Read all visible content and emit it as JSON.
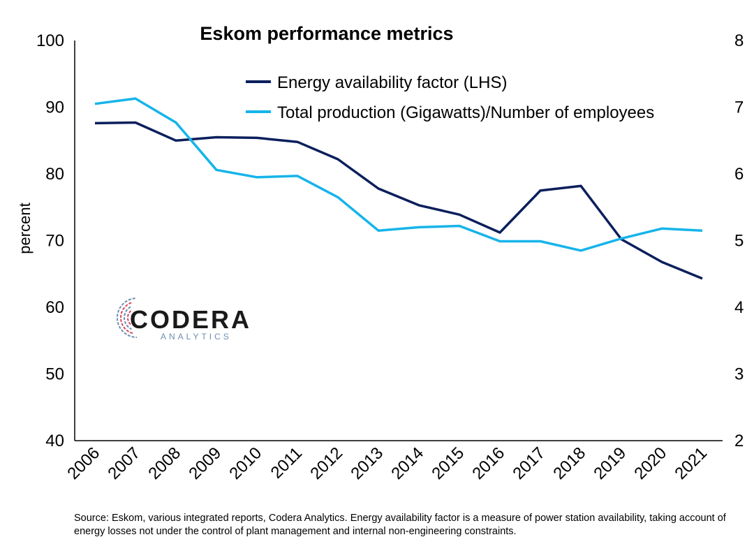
{
  "chart_data": {
    "type": "line",
    "title": "Eskom performance metrics",
    "ylabel": "percent",
    "y2label": "",
    "x": [
      "2006",
      "2007",
      "2008",
      "2009",
      "2010",
      "2011",
      "2012",
      "2013",
      "2014",
      "2015",
      "2016",
      "2017",
      "2018",
      "2019",
      "2020",
      "2021"
    ],
    "ylim": [
      40,
      100
    ],
    "yticks": [
      "40",
      "50",
      "60",
      "70",
      "80",
      "90",
      "100"
    ],
    "y2lim": [
      2,
      8
    ],
    "y2ticks": [
      "2",
      "3",
      "4",
      "5",
      "6",
      "7",
      "8"
    ],
    "grid": false,
    "legend_position": "top-right",
    "series": [
      {
        "name": "Energy availability factor (LHS)",
        "axis": "left",
        "color": "#0b1f5c",
        "values": [
          87.6,
          87.7,
          85.0,
          85.5,
          85.4,
          84.8,
          82.2,
          77.8,
          75.3,
          73.9,
          71.2,
          77.5,
          78.2,
          70.2,
          66.8,
          64.3
        ]
      },
      {
        "name": "Total production (Gigawatts)/Number of employees",
        "axis": "right",
        "color": "#16b4ea",
        "values": [
          7.05,
          7.13,
          6.77,
          6.06,
          5.95,
          5.97,
          5.65,
          5.15,
          5.2,
          5.22,
          4.99,
          4.99,
          4.85,
          5.03,
          5.18,
          5.15
        ]
      }
    ]
  },
  "logo": {
    "main": "CODERA",
    "sub": "ANALYTICS"
  },
  "source_note": "Source: Eskom, various integrated reports, Codera Analytics. Energy availability factor is a measure of power station availability, taking account of energy losses not under the control of plant management and internal non-engineering constraints."
}
